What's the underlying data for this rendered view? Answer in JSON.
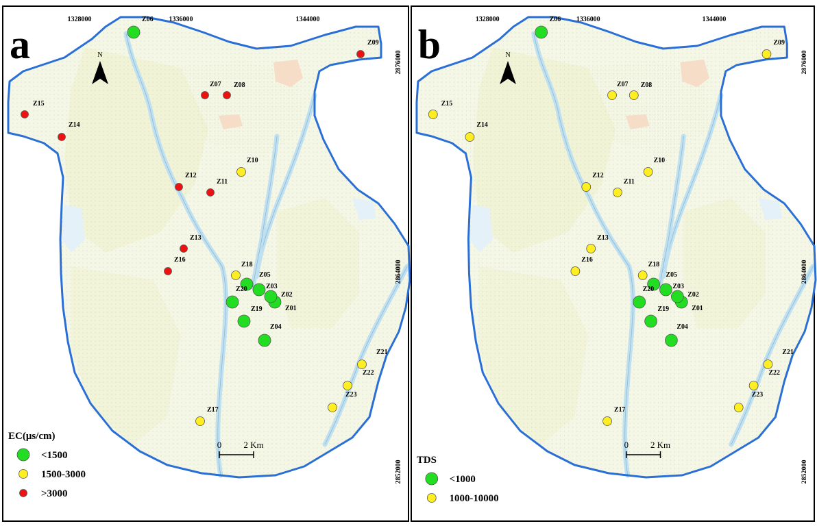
{
  "panels": [
    {
      "letter": "a",
      "legend_title": "EC(μs/cm)",
      "classes": [
        {
          "label": "<1500",
          "color": "#22dd22",
          "size": "large"
        },
        {
          "label": "1500-3000",
          "color": "#ffee22",
          "size": "medium"
        },
        {
          "label": ">3000",
          "color": "#ee1111",
          "size": "small"
        }
      ],
      "samples": [
        {
          "id": "Z01",
          "cls": 0
        },
        {
          "id": "Z02",
          "cls": 0
        },
        {
          "id": "Z03",
          "cls": 0
        },
        {
          "id": "Z04",
          "cls": 0
        },
        {
          "id": "Z05",
          "cls": 0
        },
        {
          "id": "Z06",
          "cls": 0
        },
        {
          "id": "Z07",
          "cls": 2
        },
        {
          "id": "Z08",
          "cls": 2
        },
        {
          "id": "Z09",
          "cls": 2
        },
        {
          "id": "Z10",
          "cls": 1
        },
        {
          "id": "Z11",
          "cls": 2
        },
        {
          "id": "Z12",
          "cls": 2
        },
        {
          "id": "Z13",
          "cls": 2
        },
        {
          "id": "Z14",
          "cls": 2
        },
        {
          "id": "Z15",
          "cls": 2
        },
        {
          "id": "Z16",
          "cls": 2
        },
        {
          "id": "Z17",
          "cls": 1
        },
        {
          "id": "Z18",
          "cls": 1
        },
        {
          "id": "Z19",
          "cls": 0
        },
        {
          "id": "Z20",
          "cls": 0
        },
        {
          "id": "Z21",
          "cls": 1
        },
        {
          "id": "Z22",
          "cls": 1
        },
        {
          "id": "Z23",
          "cls": 1
        }
      ]
    },
    {
      "letter": "b",
      "legend_title": "TDS",
      "classes": [
        {
          "label": "<1000",
          "color": "#22dd22",
          "size": "large"
        },
        {
          "label": "1000-10000",
          "color": "#ffee22",
          "size": "medium"
        }
      ],
      "samples": [
        {
          "id": "Z01",
          "cls": 0
        },
        {
          "id": "Z02",
          "cls": 0
        },
        {
          "id": "Z03",
          "cls": 0
        },
        {
          "id": "Z04",
          "cls": 0
        },
        {
          "id": "Z05",
          "cls": 0
        },
        {
          "id": "Z06",
          "cls": 0
        },
        {
          "id": "Z07",
          "cls": 1
        },
        {
          "id": "Z08",
          "cls": 1
        },
        {
          "id": "Z09",
          "cls": 1
        },
        {
          "id": "Z10",
          "cls": 1
        },
        {
          "id": "Z11",
          "cls": 1
        },
        {
          "id": "Z12",
          "cls": 1
        },
        {
          "id": "Z13",
          "cls": 1
        },
        {
          "id": "Z14",
          "cls": 1
        },
        {
          "id": "Z15",
          "cls": 1
        },
        {
          "id": "Z16",
          "cls": 1
        },
        {
          "id": "Z17",
          "cls": 1
        },
        {
          "id": "Z18",
          "cls": 1
        },
        {
          "id": "Z19",
          "cls": 0
        },
        {
          "id": "Z20",
          "cls": 0
        },
        {
          "id": "Z21",
          "cls": 1
        },
        {
          "id": "Z22",
          "cls": 1
        },
        {
          "id": "Z23",
          "cls": 1
        }
      ]
    }
  ],
  "x_ticks": [
    "1328000",
    "1336000",
    "1344000"
  ],
  "y_ticks": [
    "2876000",
    "2864000",
    "2852000"
  ],
  "north_label": "N",
  "scale_bar": {
    "start": "0",
    "end": "2 Km"
  },
  "colors": {
    "boundary": "#2a6fd6",
    "river": "#bfe0f0",
    "land": "#f4f6e6",
    "sand": "#eef2cc",
    "urban": "#f6ddc8"
  }
}
